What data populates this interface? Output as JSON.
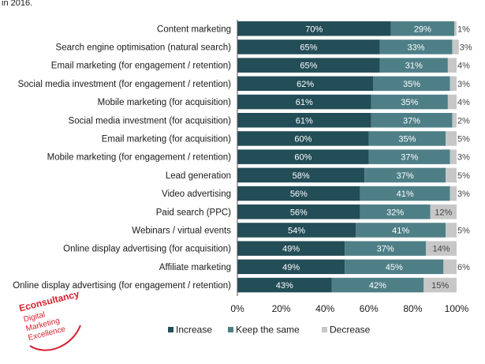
{
  "header": {
    "fragment": "in 2016."
  },
  "colors": {
    "increase": "#234d57",
    "keep": "#4e7f87",
    "decrease": "#c7c7c7",
    "brand": "#d6202e"
  },
  "logo": {
    "name": "Econsultancy",
    "tagline_1": "Digital",
    "tagline_2": "Marketing",
    "tagline_3": "Excellence"
  },
  "chart_data": {
    "type": "bar",
    "orientation": "horizontal",
    "stacked": true,
    "title": "",
    "xlabel": "",
    "ylabel": "",
    "xlim": [
      0,
      100
    ],
    "x_ticks": [
      "0%",
      "20%",
      "40%",
      "60%",
      "80%",
      "100%"
    ],
    "legend_position": "bottom",
    "grid": false,
    "categories": [
      "Content marketing",
      "Search engine optimisation (natural search)",
      "Email marketing (for engagement / retention)",
      "Social media investment (for engagement / retention)",
      "Mobile marketing (for acquisition)",
      "Social media investment (for acquisition)",
      "Email marketing (for acquisition)",
      "Mobile marketing (for engagement / retention)",
      "Lead generation",
      "Video advertising",
      "Paid search (PPC)",
      "Webinars / virtual events",
      "Online display advertising (for acquisition)",
      "Affiliate marketing",
      "Online display advertising (for engagement / retention)"
    ],
    "series": [
      {
        "name": "Increase",
        "values": [
          70,
          65,
          65,
          62,
          61,
          61,
          60,
          60,
          58,
          56,
          56,
          54,
          49,
          49,
          43
        ],
        "labels": [
          "70%",
          "65%",
          "65%",
          "62%",
          "61%",
          "61%",
          "60%",
          "60%",
          "58%",
          "56%",
          "56%",
          "54%",
          "49%",
          "49%",
          "43%"
        ]
      },
      {
        "name": "Keep the same",
        "values": [
          29,
          33,
          31,
          35,
          35,
          37,
          35,
          37,
          37,
          41,
          32,
          41,
          37,
          45,
          42
        ],
        "labels": [
          "29%",
          "33%",
          "31%",
          "35%",
          "35%",
          "37%",
          "35%",
          "37%",
          "37%",
          "41%",
          "32%",
          "41%",
          "37%",
          "45%",
          "42%"
        ]
      },
      {
        "name": "Decrease",
        "values": [
          1,
          3,
          4,
          3,
          4,
          2,
          5,
          3,
          5,
          3,
          12,
          5,
          14,
          6,
          15
        ],
        "labels": [
          "1%",
          "3%",
          "4%",
          "3%",
          "4%",
          "2%",
          "5%",
          "3%",
          "5%",
          "3%",
          "12%",
          "5%",
          "14%",
          "6%",
          "15%"
        ]
      }
    ]
  }
}
